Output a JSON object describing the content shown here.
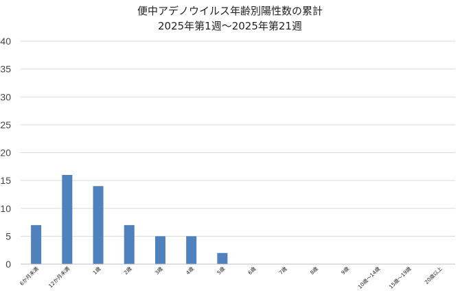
{
  "chart_data": {
    "type": "bar",
    "title": "便中アデノウイルス年齢別陽性数の累計",
    "subtitle": "2025年第1週〜2025年第21週",
    "xlabel": "",
    "ylabel": "",
    "ylim": [
      0,
      40
    ],
    "yticks": [
      "0",
      "5",
      "10",
      "15",
      "20",
      "25",
      "30",
      "35",
      "40"
    ],
    "grid": true,
    "legend": "none",
    "bar_color": "#4f81bd",
    "categories": [
      "6か月未満",
      "12か月未満",
      "1歳",
      "2歳",
      "3歳",
      "4歳",
      "5歳",
      "6歳",
      "7歳",
      "8歳",
      "9歳",
      "10歳〜14歳",
      "15歳〜19歳",
      "20歳以上"
    ],
    "values": [
      7,
      16,
      14,
      7,
      5,
      5,
      2,
      0,
      0,
      0,
      0,
      0,
      0,
      0
    ]
  }
}
